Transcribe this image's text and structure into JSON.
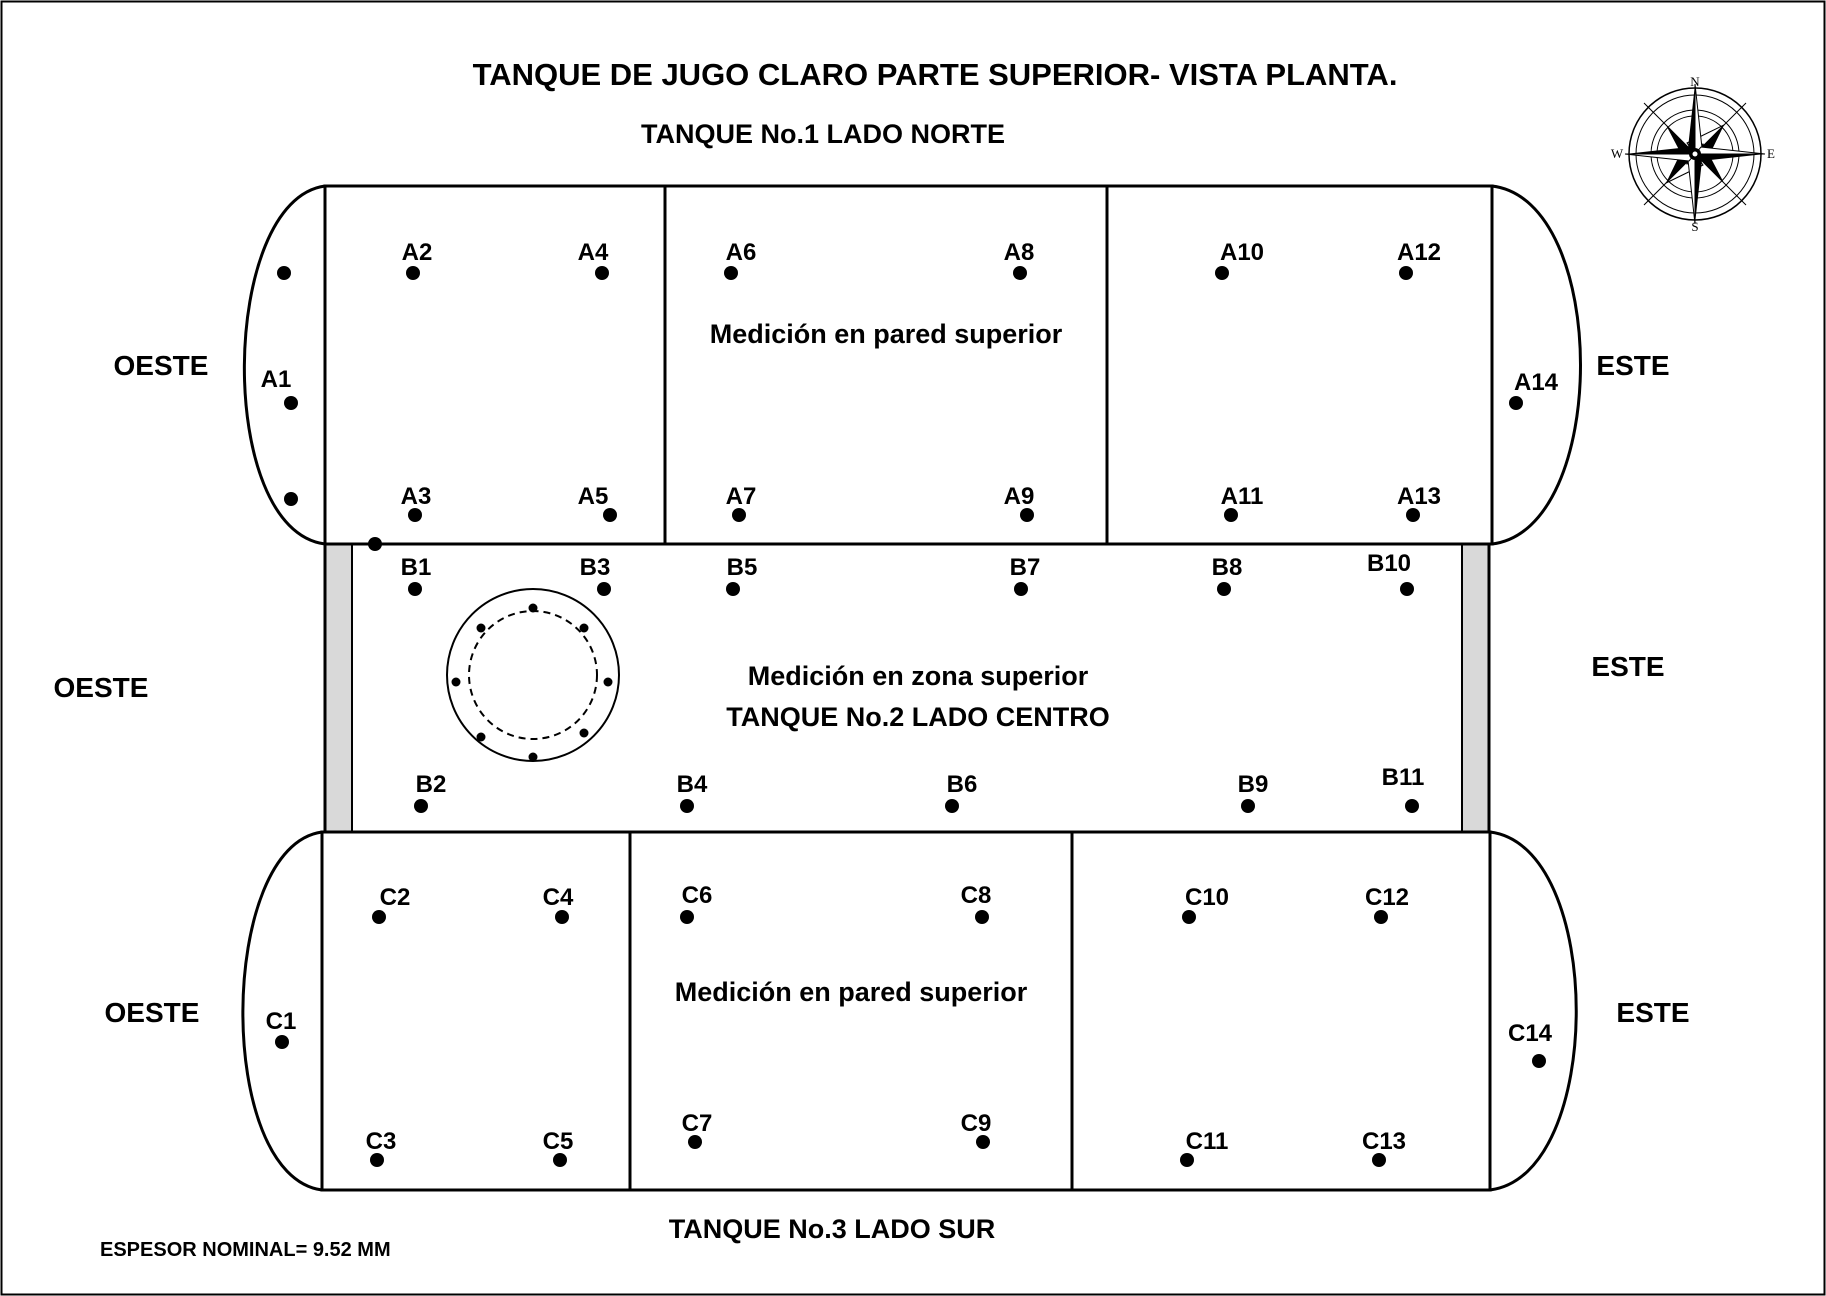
{
  "title": "TANQUE DE JUGO CLARO PARTE SUPERIOR- VISTA PLANTA.",
  "tanks": {
    "north": "TANQUE No.1 LADO NORTE",
    "center": "TANQUE No.2 LADO CENTRO",
    "south": "TANQUE No.3 LADO SUR"
  },
  "directions": {
    "west": "OESTE",
    "east": "ESTE"
  },
  "notes": {
    "north": "Medición en pared superior",
    "center": "Medición en zona superior",
    "south": "Medición en pared superior"
  },
  "compass": {
    "n": "N",
    "s": "S",
    "e": "E",
    "w": "W"
  },
  "footer": "ESPESOR NOMINAL= 9.52 MM",
  "points": {
    "A": [
      "A1",
      "A2",
      "A3",
      "A4",
      "A5",
      "A6",
      "A7",
      "A8",
      "A9",
      "A10",
      "A11",
      "A12",
      "A13",
      "A14"
    ],
    "B": [
      "B1",
      "B2",
      "B3",
      "B4",
      "B5",
      "B6",
      "B7",
      "B8",
      "B9",
      "B10",
      "B11"
    ],
    "C": [
      "C1",
      "C2",
      "C3",
      "C4",
      "C5",
      "C6",
      "C7",
      "C8",
      "C9",
      "C10",
      "C11",
      "C12",
      "C13",
      "C14"
    ]
  },
  "colors": {
    "line": "#000000",
    "band": "#d9d9d9",
    "background": "#ffffff"
  }
}
